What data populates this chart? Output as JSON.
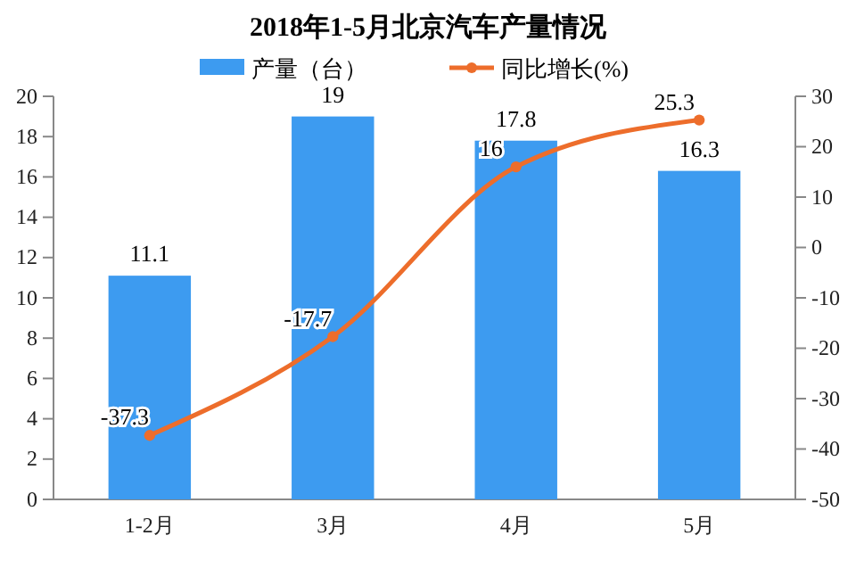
{
  "chart_data": {
    "type": "bar",
    "title": "2018年1-5月北京汽车产量情况",
    "categories": [
      "1-2月",
      "3月",
      "4月",
      "5月"
    ],
    "series": [
      {
        "name": "产量（台）",
        "color": "#3d9bf0",
        "values": [
          11.1,
          19,
          17.8,
          16.3
        ]
      },
      {
        "name": "同比增长(%)",
        "type": "line",
        "axis": "y2",
        "color": "#ed6d2b",
        "values": [
          -37.3,
          -17.7,
          16,
          25.3
        ]
      }
    ],
    "ylim": [
      0,
      20
    ],
    "yticks": [
      0,
      2,
      4,
      6,
      8,
      10,
      12,
      14,
      16,
      18,
      20
    ],
    "y2lim": [
      -50,
      30
    ],
    "y2ticks": [
      -50,
      -40,
      -30,
      -20,
      -10,
      0,
      10,
      20,
      30
    ],
    "data_labels": true,
    "legend": "top",
    "marker": "circle",
    "grid": false
  }
}
